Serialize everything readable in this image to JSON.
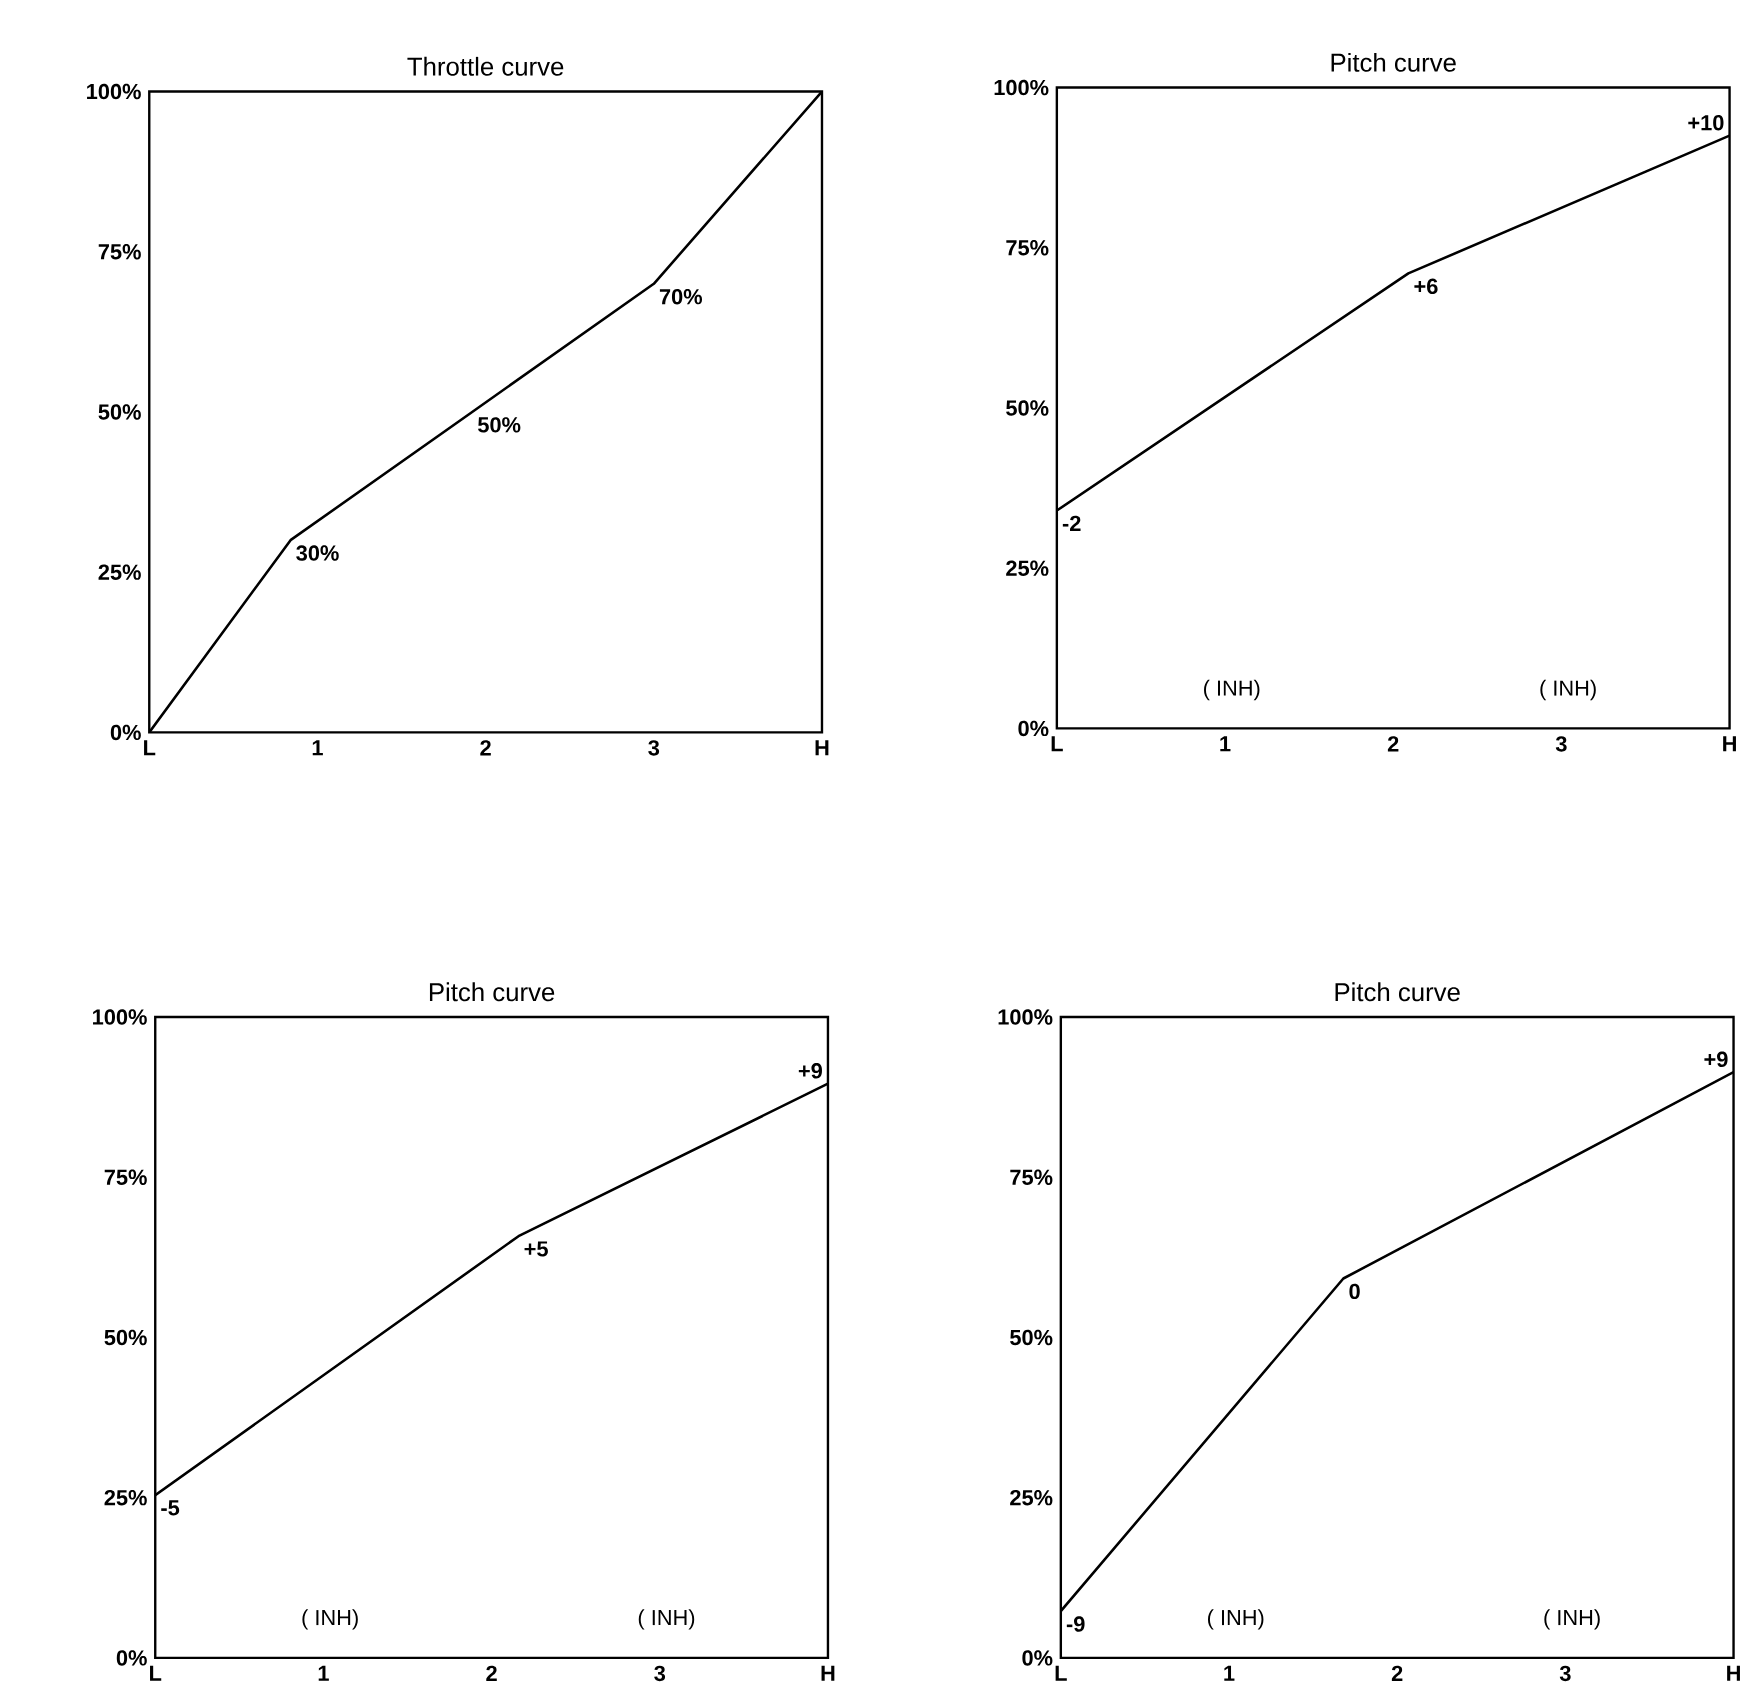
{
  "chart_data": [
    {
      "type": "line",
      "title": "Throttle curve",
      "x": [
        0,
        0.84,
        1.92,
        3,
        4
      ],
      "values": [
        0,
        30,
        50,
        70,
        100
      ],
      "value_labels": [
        null,
        "30%",
        "50%",
        "70%",
        null
      ],
      "color": "#000000",
      "xlim": [
        0,
        4
      ],
      "ylim": [
        0,
        100
      ],
      "xticks": [
        {
          "value": 0,
          "label": "L"
        },
        {
          "value": 1,
          "label": "1"
        },
        {
          "value": 2,
          "label": "2"
        },
        {
          "value": 3,
          "label": "3"
        },
        {
          "value": 4,
          "label": "H"
        }
      ],
      "yticks": [
        {
          "value": 0,
          "label": "0%"
        },
        {
          "value": 25,
          "label": "25%"
        },
        {
          "value": 50,
          "label": "50%"
        },
        {
          "value": 75,
          "label": "75%"
        },
        {
          "value": 100,
          "label": "100%"
        }
      ]
    },
    {
      "type": "line",
      "title": "Pitch curve",
      "x": [
        0,
        2.09,
        4
      ],
      "values": [
        34,
        71,
        92.5
      ],
      "color": "#000000",
      "xlim": [
        0,
        4
      ],
      "ylim": [
        0,
        100
      ],
      "xticks": [
        {
          "value": 0,
          "label": "L"
        },
        {
          "value": 1,
          "label": "1"
        },
        {
          "value": 2,
          "label": "2"
        },
        {
          "value": 3,
          "label": "3"
        },
        {
          "value": 4,
          "label": "H"
        }
      ],
      "yticks": [
        {
          "value": 0,
          "label": "0%"
        },
        {
          "value": 25,
          "label": "25%"
        },
        {
          "value": 50,
          "label": "50%"
        },
        {
          "value": 75,
          "label": "75%"
        },
        {
          "value": 100,
          "label": "100%"
        }
      ],
      "annotations": [
        "( INH)",
        "( INH)",
        {
          "text": "-2",
          "x": 0,
          "y": 34
        },
        {
          "text": "+6",
          "x": 2.09,
          "y": 71
        },
        {
          "text": "+10",
          "x": 4,
          "y": 92.5
        }
      ]
    },
    {
      "type": "line",
      "title": "Pitch curve",
      "x": [
        0,
        2.16,
        4
      ],
      "values": [
        25.4,
        65.8,
        89.6
      ],
      "color": "#000000",
      "xlim": [
        0,
        4
      ],
      "ylim": [
        0,
        100
      ],
      "xticks": [
        {
          "value": 0,
          "label": "L"
        },
        {
          "value": 1,
          "label": "1"
        },
        {
          "value": 2,
          "label": "2"
        },
        {
          "value": 3,
          "label": "3"
        },
        {
          "value": 4,
          "label": "H"
        }
      ],
      "yticks": [
        {
          "value": 0,
          "label": "0%"
        },
        {
          "value": 25,
          "label": "25%"
        },
        {
          "value": 50,
          "label": "50%"
        },
        {
          "value": 75,
          "label": "75%"
        },
        {
          "value": 100,
          "label": "100%"
        }
      ],
      "annotations": [
        "( INH)",
        "( INH)",
        {
          "text": "-5",
          "x": 0,
          "y": 25.4
        },
        {
          "text": "+5",
          "x": 2.16,
          "y": 65.8
        },
        {
          "text": "+9",
          "x": 4,
          "y": 89.6
        }
      ]
    },
    {
      "type": "line",
      "title": "Pitch curve",
      "x": [
        0,
        1.68,
        4
      ],
      "values": [
        7.3,
        59.2,
        91.4
      ],
      "color": "#000000",
      "xlim": [
        0,
        4
      ],
      "ylim": [
        0,
        100
      ],
      "xticks": [
        {
          "value": 0,
          "label": "L"
        },
        {
          "value": 1,
          "label": "1"
        },
        {
          "value": 2,
          "label": "2"
        },
        {
          "value": 3,
          "label": "3"
        },
        {
          "value": 4,
          "label": "H"
        }
      ],
      "yticks": [
        {
          "value": 0,
          "label": "0%"
        },
        {
          "value": 25,
          "label": "25%"
        },
        {
          "value": 50,
          "label": "50%"
        },
        {
          "value": 75,
          "label": "75%"
        },
        {
          "value": 100,
          "label": "100%"
        }
      ],
      "annotations": [
        "( INH)",
        "( INH)",
        {
          "text": "-9",
          "x": 0,
          "y": 7.3
        },
        {
          "text": "0",
          "x": 1.68,
          "y": 59.2
        },
        {
          "text": "+9",
          "x": 4,
          "y": 91.4
        }
      ]
    }
  ]
}
